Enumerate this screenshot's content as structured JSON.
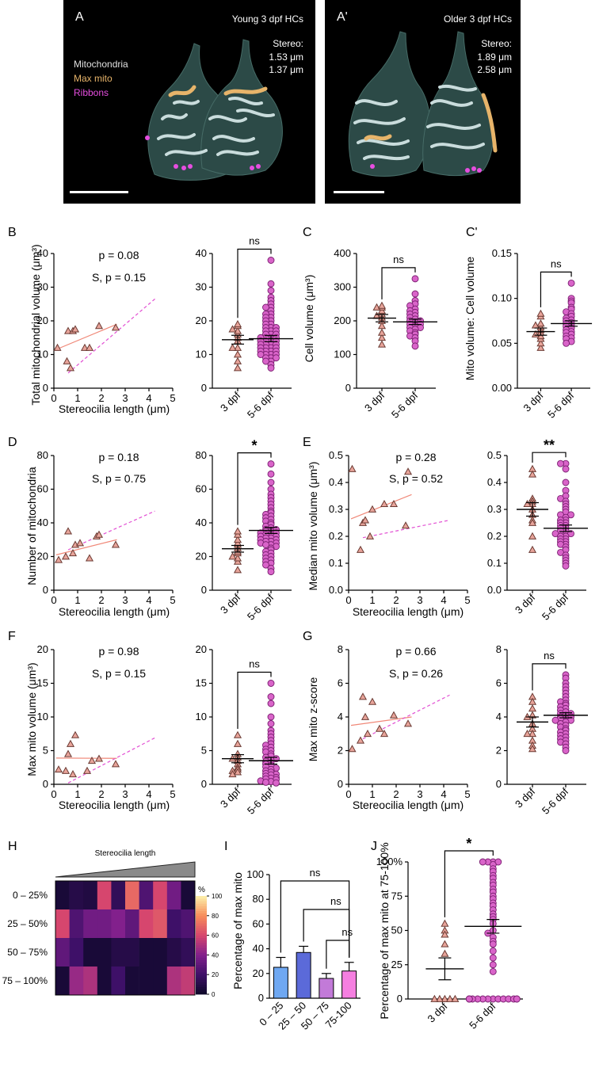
{
  "colors": {
    "tri_fill": "#e8a49a",
    "tri_stroke": "#6b3b34",
    "dot_fill": "#d964c9",
    "dot_stroke": "#7a1f70",
    "fit_solid": "#f08878",
    "fit_dashed": "#e24fd3",
    "bar_fill": [
      "#6fa8f2",
      "#5b6ad9",
      "#c27ad8",
      "#f57fe0"
    ],
    "mito_label": "#e0e0e0",
    "max_mito_label": "#e7b46a",
    "ribbons_label": "#e64ee0"
  },
  "panel_a": {
    "letter": "A",
    "title": "Young 3 dpf HCs",
    "stereo_label": "Stereo:",
    "stereo_values": [
      "1.53 μm",
      "1.37 μm"
    ],
    "legend": [
      "Mitochondria",
      "Max mito",
      "Ribbons"
    ]
  },
  "panel_a2": {
    "letter": "A'",
    "title": "Older 3 dpf HCs",
    "stereo_label": "Stereo:",
    "stereo_values": [
      "1.89 μm",
      "2.58 μm"
    ]
  },
  "common": {
    "stereo_xlabel": "Stereocilia length (μm)",
    "group_labels": [
      "3 dpf",
      "5-6 dpf"
    ]
  },
  "panels": {
    "B": {
      "letter": "B",
      "p": "p = 0.08",
      "s": "S, p = 0.15",
      "ylabel": "Total mitochondrial volume (μm³)",
      "sig": "ns"
    },
    "C": {
      "letter": "C",
      "ylabel": "Cell volume (μm³)",
      "sig": "ns"
    },
    "C2": {
      "letter": "C'",
      "ylabel": "Mito volume: Cell volume",
      "sig": "ns"
    },
    "D": {
      "letter": "D",
      "p": "p = 0.18",
      "s": "S, p = 0.75",
      "ylabel": "Number of mitochondria",
      "sig": "*"
    },
    "E": {
      "letter": "E",
      "p": "p = 0.28",
      "s": "S, p = 0.52",
      "ylabel": "Median mito volume (μm³)",
      "sig": "**"
    },
    "F": {
      "letter": "F",
      "p": "p = 0.98",
      "s": "S, p = 0.15",
      "ylabel": "Max mito volume (μm³)",
      "sig": "ns"
    },
    "G": {
      "letter": "G",
      "p": "p = 0.66",
      "s": "S, p = 0.26",
      "ylabel": "Max mito z-score",
      "sig": "ns"
    },
    "H": {
      "letter": "H",
      "title": "Stereocilia length",
      "rows": [
        "0 – 25%",
        "25 – 50%",
        "50 – 75%",
        "75 – 100%"
      ],
      "scale_label": "%",
      "scale_ticks": [
        "0",
        "20",
        "40",
        "60",
        "80",
        "100"
      ]
    },
    "I": {
      "letter": "I",
      "ylabel": "Percentage of  max mito",
      "sigs": [
        "ns",
        "ns",
        "ns"
      ]
    },
    "J": {
      "letter": "J",
      "ylabel": "Percentage of  max mito at 75-100%",
      "sig": "*"
    }
  },
  "chart_data": [
    {
      "id": "B-scatter",
      "type": "scatter",
      "xlim": [
        0,
        5
      ],
      "ylim": [
        0,
        40
      ],
      "xticks": [
        0,
        1,
        2,
        3,
        4,
        5
      ],
      "yticks": [
        0,
        10,
        20,
        30,
        40
      ],
      "x": [
        0.15,
        0.55,
        0.6,
        0.7,
        0.8,
        0.9,
        1.3,
        1.5,
        1.9,
        2.6
      ],
      "y": [
        12,
        8,
        17,
        6,
        17,
        17.5,
        12,
        12,
        18.5,
        18
      ],
      "fit_solid": [
        [
          0.1,
          11.5
        ],
        [
          2.65,
          19
        ]
      ],
      "fit_dashed": [
        [
          0.6,
          4.5
        ],
        [
          4.25,
          26.5
        ]
      ]
    },
    {
      "id": "B-groups",
      "type": "scatter",
      "ylim": [
        0,
        40
      ],
      "yticks": [
        0,
        10,
        20,
        30,
        40
      ],
      "groups": [
        {
          "values": [
            6,
            8,
            10,
            12,
            12,
            14,
            15,
            16,
            17,
            17.5,
            18.5,
            19
          ],
          "mean": 14.4,
          "sem": 1.3
        },
        {
          "values": [
            38,
            31,
            29,
            27,
            26,
            25,
            24,
            24,
            23,
            22,
            22,
            21,
            21,
            20,
            20,
            19,
            19,
            18,
            18,
            18,
            17,
            17,
            17,
            16,
            16,
            16,
            15,
            15,
            15,
            15,
            14,
            14,
            14,
            14,
            13,
            13,
            13,
            13,
            12,
            12,
            12,
            12,
            11,
            11,
            11,
            11,
            10,
            10,
            10,
            10,
            9,
            9,
            9,
            8,
            8,
            7,
            6
          ],
          "mean": 14.7,
          "sem": 0.9
        }
      ]
    },
    {
      "id": "C-groups",
      "type": "scatter",
      "ylim": [
        0,
        400
      ],
      "yticks": [
        0,
        100,
        200,
        300,
        400
      ],
      "groups": [
        {
          "values": [
            130,
            150,
            165,
            185,
            200,
            210,
            215,
            220,
            230,
            240,
            240,
            245
          ],
          "mean": 208,
          "sem": 11
        },
        {
          "values": [
            325,
            280,
            260,
            250,
            245,
            235,
            230,
            225,
            220,
            215,
            210,
            205,
            200,
            200,
            195,
            190,
            190,
            185,
            180,
            180,
            175,
            170,
            165,
            160,
            155,
            150,
            140,
            125
          ],
          "mean": 197,
          "sem": 8
        }
      ]
    },
    {
      "id": "C2-groups",
      "type": "scatter",
      "ylim": [
        0,
        0.15
      ],
      "yticks": [
        0,
        0.05,
        0.1,
        0.15
      ],
      "groups": [
        {
          "values": [
            0.045,
            0.05,
            0.055,
            0.058,
            0.06,
            0.062,
            0.065,
            0.068,
            0.07,
            0.072,
            0.08,
            0.083
          ],
          "mean": 0.063,
          "sem": 0.004
        },
        {
          "values": [
            0.117,
            0.1,
            0.097,
            0.095,
            0.09,
            0.088,
            0.085,
            0.083,
            0.08,
            0.078,
            0.076,
            0.075,
            0.073,
            0.072,
            0.07,
            0.069,
            0.067,
            0.065,
            0.063,
            0.062,
            0.06,
            0.058,
            0.056,
            0.055,
            0.052,
            0.05
          ],
          "mean": 0.072,
          "sem": 0.003
        }
      ]
    },
    {
      "id": "D-scatter",
      "type": "scatter",
      "xlim": [
        0,
        5
      ],
      "ylim": [
        0,
        80
      ],
      "xticks": [
        0,
        1,
        2,
        3,
        4,
        5
      ],
      "yticks": [
        0,
        20,
        40,
        60,
        80
      ],
      "x": [
        0.2,
        0.5,
        0.6,
        0.8,
        0.9,
        1.1,
        1.5,
        1.8,
        1.9,
        2.6
      ],
      "y": [
        18,
        20,
        35,
        22,
        27,
        28,
        19,
        32,
        33,
        27
      ],
      "fit_solid": [
        [
          0.1,
          21
        ],
        [
          2.65,
          30
        ]
      ],
      "fit_dashed": [
        [
          0.6,
          24
        ],
        [
          4.25,
          47
        ]
      ]
    },
    {
      "id": "D-groups",
      "type": "scatter",
      "ylim": [
        0,
        80
      ],
      "yticks": [
        0,
        20,
        40,
        60,
        80
      ],
      "groups": [
        {
          "values": [
            12,
            17,
            19,
            20,
            22,
            23,
            25,
            27,
            28,
            30,
            33,
            35
          ],
          "mean": 24.6,
          "sem": 2
        },
        {
          "values": [
            75,
            69,
            64,
            60,
            57,
            55,
            53,
            51,
            49,
            47,
            46,
            45,
            44,
            43,
            42,
            41,
            40,
            39,
            38,
            37,
            36,
            36,
            35,
            35,
            34,
            34,
            33,
            33,
            32,
            32,
            31,
            31,
            30,
            30,
            29,
            29,
            28,
            28,
            27,
            27,
            26,
            25,
            24,
            23,
            22,
            21,
            20,
            19,
            18,
            17,
            16,
            15,
            13,
            11
          ],
          "mean": 35.5,
          "sem": 1.8
        }
      ]
    },
    {
      "id": "E-scatter",
      "type": "scatter",
      "xlim": [
        0,
        5
      ],
      "ylim": [
        0,
        0.5
      ],
      "xticks": [
        0,
        1,
        2,
        3,
        4,
        5
      ],
      "yticks": [
        0,
        0.1,
        0.2,
        0.3,
        0.4,
        0.5
      ],
      "x": [
        0.15,
        0.5,
        0.6,
        0.7,
        0.9,
        1.0,
        1.5,
        1.9,
        2.4,
        2.5
      ],
      "y": [
        0.45,
        0.15,
        0.25,
        0.26,
        0.2,
        0.3,
        0.32,
        0.32,
        0.24,
        0.44
      ],
      "fit_solid": [
        [
          0.1,
          0.265
        ],
        [
          2.65,
          0.355
        ]
      ],
      "fit_dashed": [
        [
          0.6,
          0.195
        ],
        [
          4.25,
          0.26
        ]
      ]
    },
    {
      "id": "E-groups",
      "type": "scatter",
      "ylim": [
        0,
        0.5
      ],
      "yticks": [
        0,
        0.1,
        0.2,
        0.3,
        0.4,
        0.5
      ],
      "groups": [
        {
          "values": [
            0.45,
            0.43,
            0.34,
            0.33,
            0.32,
            0.32,
            0.3,
            0.28,
            0.26,
            0.25,
            0.2,
            0.15
          ],
          "mean": 0.3,
          "sem": 0.025
        },
        {
          "values": [
            0.47,
            0.47,
            0.45,
            0.4,
            0.37,
            0.35,
            0.34,
            0.33,
            0.32,
            0.31,
            0.3,
            0.29,
            0.28,
            0.28,
            0.27,
            0.26,
            0.26,
            0.25,
            0.25,
            0.24,
            0.24,
            0.23,
            0.23,
            0.22,
            0.22,
            0.21,
            0.21,
            0.2,
            0.2,
            0.19,
            0.19,
            0.18,
            0.18,
            0.17,
            0.17,
            0.16,
            0.15,
            0.14,
            0.13,
            0.12,
            0.11,
            0.1,
            0.09
          ],
          "mean": 0.23,
          "sem": 0.012
        }
      ]
    },
    {
      "id": "F-scatter",
      "type": "scatter",
      "xlim": [
        0,
        5
      ],
      "ylim": [
        0,
        20
      ],
      "xticks": [
        0,
        1,
        2,
        3,
        4,
        5
      ],
      "yticks": [
        0,
        5,
        10,
        15,
        20
      ],
      "x": [
        0.2,
        0.5,
        0.6,
        0.7,
        0.8,
        0.9,
        1.4,
        1.6,
        1.9,
        2.6
      ],
      "y": [
        2.2,
        2.0,
        4.5,
        6.0,
        1.5,
        7.3,
        2.0,
        3.5,
        3.8,
        3.0
      ],
      "fit_solid": [
        [
          0.1,
          3.9
        ],
        [
          2.65,
          3.85
        ]
      ],
      "fit_dashed": [
        [
          0.6,
          0.2
        ],
        [
          4.25,
          6.9
        ]
      ]
    },
    {
      "id": "F-groups",
      "type": "scatter",
      "ylim": [
        0,
        20
      ],
      "yticks": [
        0,
        5,
        10,
        15,
        20
      ],
      "groups": [
        {
          "values": [
            7.3,
            6.0,
            4.5,
            4.0,
            3.8,
            3.5,
            3.0,
            2.5,
            2.2,
            2.0,
            1.8,
            1.5
          ],
          "mean": 3.8,
          "sem": 0.6
        },
        {
          "values": [
            15,
            13,
            12,
            10,
            9,
            8,
            7.5,
            7,
            6.5,
            6,
            5.8,
            5.5,
            5.2,
            5,
            4.8,
            4.5,
            4.2,
            4,
            3.8,
            3.6,
            3.4,
            3.2,
            3,
            2.8,
            2.6,
            2.4,
            2.2,
            2,
            1.8,
            1.6,
            1.5,
            1.4,
            1.2,
            1,
            0.9,
            0.8,
            0.7,
            0.5,
            0.4,
            0.3,
            0.2
          ],
          "mean": 3.5,
          "sem": 0.5
        }
      ]
    },
    {
      "id": "G-scatter",
      "type": "scatter",
      "xlim": [
        0,
        5
      ],
      "ylim": [
        0,
        8
      ],
      "xticks": [
        0,
        1,
        2,
        3,
        4,
        5
      ],
      "yticks": [
        0,
        2,
        4,
        6,
        8
      ],
      "x": [
        0.15,
        0.5,
        0.6,
        0.7,
        0.8,
        1.0,
        1.3,
        1.5,
        1.9,
        2.5
      ],
      "y": [
        2.1,
        2.6,
        5.2,
        4.0,
        3.0,
        4.9,
        3.3,
        3.0,
        4.1,
        3.6
      ],
      "fit_solid": [
        [
          0.1,
          3.5
        ],
        [
          2.65,
          4.0
        ]
      ],
      "fit_dashed": [
        [
          0.6,
          2.7
        ],
        [
          4.25,
          5.3
        ]
      ]
    },
    {
      "id": "G-groups",
      "type": "scatter",
      "ylim": [
        0,
        8
      ],
      "yticks": [
        0,
        2,
        4,
        6,
        8
      ],
      "groups": [
        {
          "values": [
            5.2,
            4.9,
            4.5,
            4.1,
            4.0,
            3.6,
            3.3,
            3.0,
            3.0,
            2.6,
            2.3,
            2.1
          ],
          "mean": 3.7,
          "sem": 0.3
        },
        {
          "values": [
            6.5,
            6.3,
            6.0,
            5.8,
            5.6,
            5.4,
            5.2,
            5.0,
            4.9,
            4.8,
            4.7,
            4.6,
            4.5,
            4.4,
            4.3,
            4.2,
            4.2,
            4.1,
            4.0,
            4.0,
            3.9,
            3.9,
            3.8,
            3.8,
            3.7,
            3.6,
            3.5,
            3.4,
            3.3,
            3.2,
            3.1,
            3.0,
            2.9,
            2.8,
            2.7,
            2.6,
            2.5,
            2.4,
            2.2,
            2.0
          ],
          "mean": 4.1,
          "sem": 0.15
        }
      ]
    },
    {
      "id": "H-heatmap",
      "type": "heatmap",
      "vmin": 0,
      "vmax": 100,
      "rows": [
        "0 – 25%",
        "25 – 50%",
        "50 – 75%",
        "75 – 100%"
      ],
      "values": [
        [
          5,
          10,
          8,
          60,
          15,
          70,
          25,
          60,
          35,
          5
        ],
        [
          60,
          25,
          35,
          35,
          40,
          30,
          60,
          65,
          20,
          25
        ],
        [
          30,
          20,
          5,
          5,
          10,
          10,
          5,
          5,
          10,
          15
        ],
        [
          5,
          45,
          50,
          5,
          20,
          5,
          5,
          5,
          50,
          55
        ]
      ]
    },
    {
      "id": "I-bars",
      "type": "bar",
      "categories": [
        "0 – 25",
        "25 – 50",
        "50 – 75",
        "75-100"
      ],
      "values": [
        25,
        37,
        16,
        22
      ],
      "errors": [
        8,
        5,
        4,
        7
      ],
      "ylim": [
        0,
        100
      ],
      "yticks": [
        0,
        20,
        40,
        60,
        80,
        100
      ]
    },
    {
      "id": "J-groups",
      "type": "scatter",
      "ylim": [
        0,
        100
      ],
      "yticks": [
        0,
        25,
        50,
        75,
        100
      ],
      "ytick_labels": [
        "0",
        "25",
        "50",
        "75",
        "100%"
      ],
      "groups": [
        {
          "values": [
            55,
            50,
            47,
            40,
            33,
            0,
            0,
            0,
            0,
            0
          ],
          "mean": 22,
          "sem": 8
        },
        {
          "values": [
            100,
            100,
            100,
            100,
            98,
            95,
            93,
            90,
            88,
            85,
            83,
            80,
            78,
            75,
            73,
            70,
            68,
            65,
            62,
            60,
            58,
            55,
            50,
            48,
            45,
            42,
            40,
            35,
            30,
            25,
            20,
            0,
            0,
            0,
            0,
            0,
            0,
            0,
            0,
            0,
            0,
            0,
            0,
            0,
            0
          ],
          "mean": 53,
          "sem": 5
        }
      ]
    }
  ]
}
